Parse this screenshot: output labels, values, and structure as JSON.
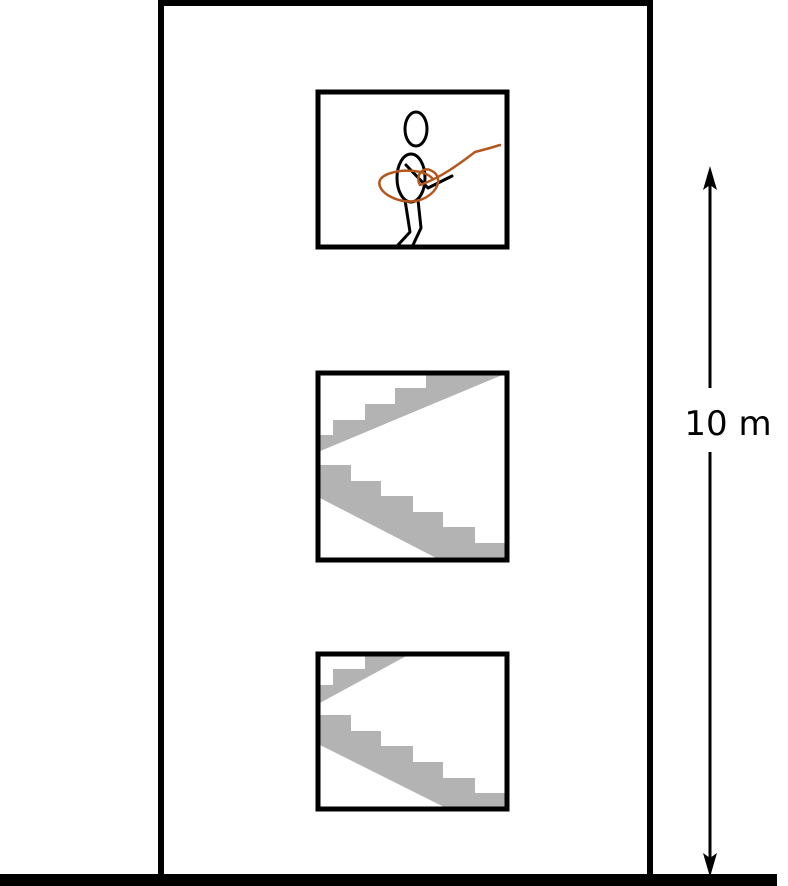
{
  "diagram": {
    "height_label": "10 m",
    "colors": {
      "outline": "#000000",
      "stairs": "#b3b3b3",
      "rope": "#b5561c",
      "background": "#ffffff"
    },
    "icons": [
      "person-with-rope-icon",
      "staircase-icon"
    ]
  }
}
